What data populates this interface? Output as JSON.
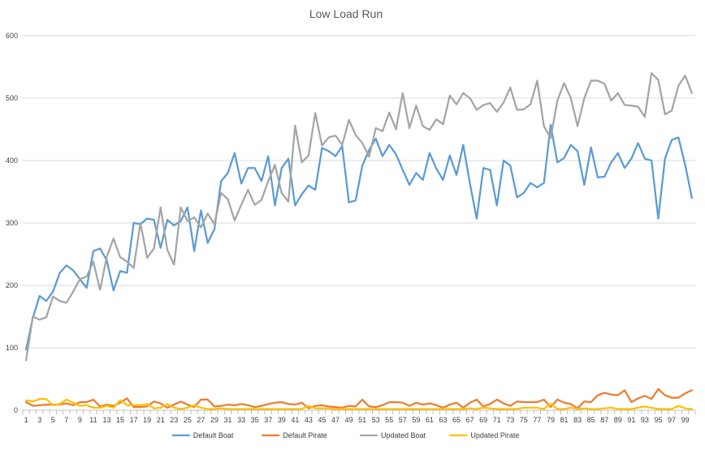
{
  "chart_data": {
    "type": "line",
    "title": "Low Load Run",
    "xlabel": "",
    "ylabel": "",
    "ylim": [
      0,
      600
    ],
    "yticks": [
      0,
      100,
      200,
      300,
      400,
      500,
      600
    ],
    "grid": true,
    "legend_position": "bottom",
    "x": [
      1,
      2,
      3,
      4,
      5,
      6,
      7,
      8,
      9,
      10,
      11,
      12,
      13,
      14,
      15,
      16,
      17,
      18,
      19,
      20,
      21,
      22,
      23,
      24,
      25,
      26,
      27,
      28,
      29,
      30,
      31,
      32,
      33,
      34,
      35,
      36,
      37,
      38,
      39,
      40,
      41,
      42,
      43,
      44,
      45,
      46,
      47,
      48,
      49,
      50,
      51,
      52,
      53,
      54,
      55,
      56,
      57,
      58,
      59,
      60,
      61,
      62,
      63,
      64,
      65,
      66,
      67,
      68,
      69,
      70,
      71,
      72,
      73,
      74,
      75,
      76,
      77,
      78,
      79,
      80,
      81,
      82,
      83,
      84,
      85,
      86,
      87,
      88,
      89,
      90,
      91,
      92,
      93,
      94,
      95,
      96,
      97,
      98,
      99,
      100
    ],
    "xtick_labels": [
      "1",
      "3",
      "5",
      "7",
      "9",
      "11",
      "13",
      "15",
      "17",
      "19",
      "21",
      "23",
      "25",
      "27",
      "29",
      "31",
      "33",
      "35",
      "37",
      "39",
      "41",
      "43",
      "45",
      "47",
      "49",
      "51",
      "53",
      "55",
      "57",
      "59",
      "61",
      "63",
      "65",
      "67",
      "69",
      "71",
      "73",
      "75",
      "77",
      "79",
      "81",
      "83",
      "85",
      "87",
      "89",
      "91",
      "93",
      "95",
      "97",
      "99"
    ],
    "series": [
      {
        "name": "Default Boat",
        "color": "#5b9bd5",
        "values": [
          97,
          148,
          183,
          175,
          190,
          220,
          232,
          224,
          210,
          196,
          255,
          259,
          240,
          192,
          223,
          220,
          300,
          298,
          307,
          305,
          260,
          305,
          296,
          303,
          325,
          255,
          320,
          268,
          290,
          367,
          380,
          412,
          363,
          388,
          388,
          367,
          407,
          328,
          388,
          403,
          328,
          346,
          360,
          353,
          420,
          415,
          407,
          423,
          333,
          336,
          392,
          417,
          435,
          407,
          425,
          410,
          385,
          361,
          380,
          369,
          412,
          387,
          369,
          408,
          377,
          425,
          363,
          307,
          388,
          385,
          328,
          400,
          392,
          341,
          348,
          364,
          357,
          364,
          457,
          397,
          404,
          425,
          415,
          361,
          421,
          373,
          374,
          397,
          412,
          388,
          403,
          428,
          403,
          400,
          307,
          403,
          433,
          437,
          393,
          340
        ]
      },
      {
        "name": "Default Pirate",
        "color": "#ed7d31",
        "values": [
          13,
          7,
          8,
          9,
          9,
          9,
          11,
          8,
          13,
          13,
          17,
          6,
          9,
          7,
          12,
          19,
          5,
          5,
          6,
          14,
          11,
          4,
          9,
          14,
          9,
          5,
          17,
          17,
          6,
          7,
          9,
          8,
          10,
          8,
          5,
          7,
          10,
          12,
          13,
          10,
          9,
          12,
          3,
          7,
          8,
          6,
          5,
          4,
          7,
          6,
          17,
          6,
          5,
          8,
          13,
          13,
          12,
          7,
          12,
          9,
          11,
          8,
          4,
          9,
          12,
          4,
          12,
          17,
          6,
          10,
          17,
          11,
          7,
          14,
          13,
          13,
          13,
          17,
          5,
          17,
          12,
          10,
          3,
          14,
          13,
          24,
          28,
          25,
          24,
          32,
          13,
          19,
          23,
          18,
          34,
          24,
          20,
          20,
          27,
          32
        ]
      },
      {
        "name": "Updated Boat",
        "color": "#a5a5a5",
        "values": [
          80,
          150,
          145,
          149,
          182,
          175,
          172,
          190,
          210,
          214,
          238,
          193,
          246,
          275,
          245,
          238,
          228,
          300,
          244,
          259,
          325,
          257,
          233,
          325,
          303,
          309,
          293,
          315,
          298,
          348,
          338,
          304,
          329,
          353,
          329,
          337,
          367,
          393,
          348,
          334,
          456,
          397,
          408,
          476,
          424,
          437,
          440,
          425,
          465,
          441,
          428,
          406,
          452,
          447,
          477,
          450,
          508,
          452,
          488,
          455,
          449,
          466,
          458,
          504,
          490,
          508,
          500,
          481,
          489,
          492,
          478,
          493,
          517,
          481,
          482,
          490,
          528,
          455,
          436,
          496,
          524,
          500,
          455,
          500,
          528,
          528,
          523,
          496,
          508,
          489,
          488,
          486,
          470,
          540,
          529,
          474,
          480,
          520,
          536,
          508
        ]
      },
      {
        "name": "Updated Pirate",
        "color": "#ffc000",
        "values": [
          16,
          14,
          18,
          18,
          8,
          10,
          17,
          12,
          7,
          8,
          4,
          4,
          7,
          4,
          16,
          8,
          8,
          8,
          10,
          3,
          4,
          10,
          4,
          2,
          4,
          8,
          4,
          2,
          2,
          3,
          2,
          2,
          2,
          2,
          2,
          2,
          2,
          2,
          2,
          2,
          2,
          2,
          7,
          3,
          3,
          3,
          2,
          2,
          2,
          2,
          2,
          2,
          2,
          2,
          2,
          2,
          2,
          2,
          2,
          2,
          2,
          2,
          2,
          2,
          2,
          2,
          3,
          2,
          4,
          3,
          2,
          2,
          2,
          2,
          4,
          4,
          4,
          2,
          10,
          2,
          2,
          4,
          2,
          3,
          2,
          2,
          3,
          4,
          2,
          2,
          2,
          4,
          6,
          4,
          2,
          2,
          2,
          7,
          3,
          2
        ]
      }
    ]
  }
}
